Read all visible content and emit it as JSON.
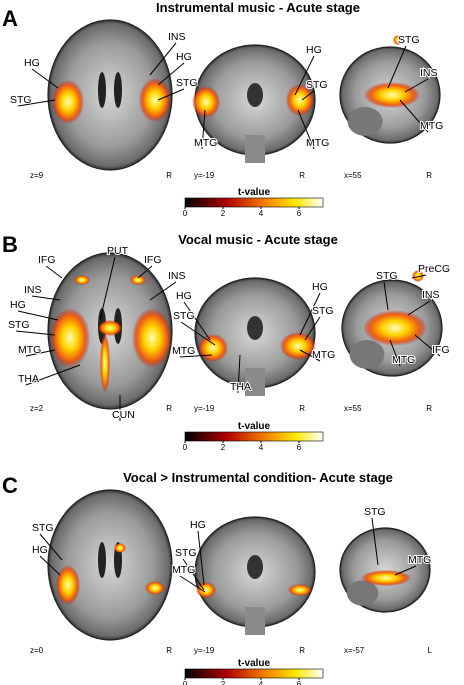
{
  "panels": [
    {
      "letter": "A",
      "title": "Instrumental music - Acute stage",
      "views": [
        {
          "coord": "z=9",
          "side": "R",
          "labels": [
            "HG",
            "STG",
            "INS",
            "HG",
            "STG"
          ]
        },
        {
          "coord": "y=-19",
          "side": "R",
          "labels": [
            "HG",
            "STG",
            "MTG",
            "MTG"
          ]
        },
        {
          "coord": "x=55",
          "side": "R",
          "labels": [
            "STG",
            "INS",
            "MTG"
          ]
        }
      ],
      "colorbar": {
        "label": "t-value",
        "ticks": [
          0,
          2,
          4,
          6
        ]
      }
    },
    {
      "letter": "B",
      "title": "Vocal music - Acute stage",
      "views": [
        {
          "coord": "z=2",
          "side": "R",
          "labels": [
            "IFG",
            "PUT",
            "IFG",
            "INS",
            "INS",
            "HG",
            "STG",
            "MTG",
            "THA",
            "CUN"
          ]
        },
        {
          "coord": "y=-19",
          "side": "R",
          "labels": [
            "HG",
            "STG",
            "MTG",
            "THA",
            "HG",
            "STG",
            "MTG"
          ]
        },
        {
          "coord": "x=55",
          "side": "R",
          "labels": [
            "STG",
            "PreCG",
            "INS",
            "IFG",
            "MTG"
          ]
        }
      ],
      "colorbar": {
        "label": "t-value",
        "ticks": [
          0,
          2,
          4,
          6
        ]
      }
    },
    {
      "letter": "C",
      "title": "Vocal > Instrumental condition- Acute stage",
      "views": [
        {
          "coord": "z=0",
          "side": "R",
          "labels": [
            "STG",
            "HG"
          ]
        },
        {
          "coord": "y=-19",
          "side": "R",
          "labels": [
            "HG",
            "STG",
            "MTG"
          ]
        },
        {
          "coord": "x=-57",
          "side": "L",
          "labels": [
            "STG",
            "MTG"
          ]
        }
      ],
      "colorbar": {
        "label": "t-value",
        "ticks": [
          0,
          2,
          4,
          6
        ]
      }
    }
  ]
}
